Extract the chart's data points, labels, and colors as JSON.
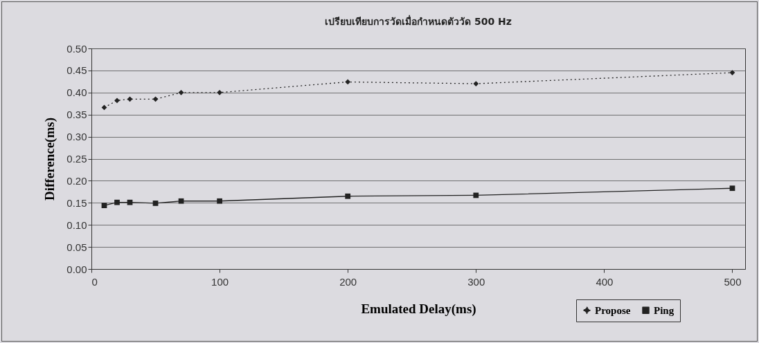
{
  "chart_data": {
    "type": "line",
    "title": "เปรียบเทียบการวัดเมื่อกำหนดตัววัด 500 Hz",
    "xlabel": "Emulated Delay(ms)",
    "ylabel": "Difference(ms)",
    "x": [
      10,
      20,
      30,
      50,
      70,
      100,
      200,
      300,
      500
    ],
    "series": [
      {
        "name": "Propose",
        "color": "#222222",
        "marker": "diamond",
        "line_style": "dotted",
        "values": [
          0.366,
          0.382,
          0.385,
          0.385,
          0.4,
          0.4,
          0.424,
          0.42,
          0.445
        ]
      },
      {
        "name": "Ping",
        "color": "#222222",
        "marker": "square",
        "line_style": "solid",
        "values": [
          0.144,
          0.151,
          0.151,
          0.149,
          0.154,
          0.154,
          0.165,
          0.167,
          0.183
        ]
      }
    ],
    "xlim": [
      0,
      510
    ],
    "xticks": [
      0,
      100,
      200,
      300,
      400,
      500
    ],
    "ylim": [
      0,
      0.5
    ],
    "yticks": [
      {
        "value": 0,
        "label": "0.00"
      },
      {
        "value": 0.05,
        "label": "0.05"
      },
      {
        "value": 0.1,
        "label": "0.10"
      },
      {
        "value": 0.15,
        "label": "0.15"
      },
      {
        "value": 0.2,
        "label": "0.20"
      },
      {
        "value": 0.25,
        "label": "0.25"
      },
      {
        "value": 0.3,
        "label": "0.30"
      },
      {
        "value": 0.35,
        "label": "0.35"
      },
      {
        "value": 0.4,
        "label": "0.40"
      },
      {
        "value": 0.45,
        "label": "0.45"
      },
      {
        "value": 0.5,
        "label": "0.50"
      }
    ],
    "grid": "y",
    "legend": "bottom right"
  }
}
